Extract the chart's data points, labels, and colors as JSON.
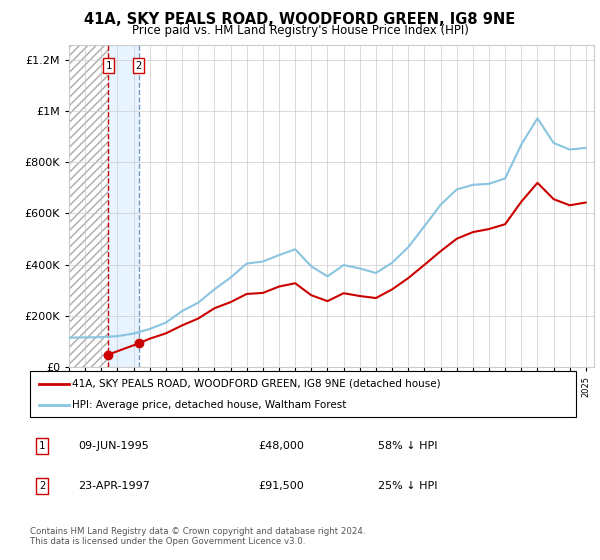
{
  "title": "41A, SKY PEALS ROAD, WOODFORD GREEN, IG8 9NE",
  "subtitle": "Price paid vs. HM Land Registry's House Price Index (HPI)",
  "legend_line1": "41A, SKY PEALS ROAD, WOODFORD GREEN, IG8 9NE (detached house)",
  "legend_line2": "HPI: Average price, detached house, Waltham Forest",
  "footer": "Contains HM Land Registry data © Crown copyright and database right 2024.\nThis data is licensed under the Open Government Licence v3.0.",
  "transactions": [
    {
      "num": 1,
      "date": "09-JUN-1995",
      "price": 48000,
      "year": 1995.44,
      "hpi_pct": "58% ↓ HPI"
    },
    {
      "num": 2,
      "date": "23-APR-1997",
      "price": 91500,
      "year": 1997.31,
      "hpi_pct": "25% ↓ HPI"
    }
  ],
  "hpi_data": {
    "years": [
      1993,
      1994,
      1995,
      1996,
      1997,
      1998,
      1999,
      2000,
      2001,
      2002,
      2003,
      2004,
      2005,
      2006,
      2007,
      2008,
      2009,
      2010,
      2011,
      2012,
      2013,
      2014,
      2015,
      2016,
      2017,
      2018,
      2019,
      2020,
      2021,
      2022,
      2023,
      2024,
      2025
    ],
    "values": [
      114000,
      115000,
      116000,
      120000,
      130000,
      148000,
      173000,
      218000,
      251000,
      303000,
      349000,
      404000,
      412000,
      437000,
      460000,
      393000,
      354000,
      398000,
      385000,
      367000,
      407000,
      468000,
      550000,
      634000,
      694000,
      712000,
      716000,
      737000,
      870000,
      972000,
      876000,
      850000,
      857000
    ]
  },
  "price_line_data": {
    "years": [
      1995.44,
      1997.31,
      1998,
      1999,
      2000,
      2001,
      2002,
      2003,
      2004,
      2005,
      2006,
      2007,
      2008,
      2009,
      2010,
      2011,
      2012,
      2013,
      2014,
      2015,
      2016,
      2017,
      2018,
      2019,
      2020,
      2021,
      2022,
      2023,
      2024,
      2025
    ],
    "values": [
      48000,
      91500,
      110000,
      131000,
      162000,
      189000,
      229000,
      253000,
      285000,
      289000,
      314000,
      327000,
      280000,
      257000,
      288000,
      277000,
      269000,
      303000,
      347000,
      399000,
      452000,
      501000,
      527000,
      539000,
      558000,
      646000,
      720000,
      656000,
      632000,
      643000
    ]
  },
  "hpi_color": "#89c4e1",
  "price_color": "#cc0000",
  "grid_color": "#cccccc",
  "xlim": [
    1993,
    2025.5
  ],
  "ylim": [
    0,
    1260000
  ],
  "yticks": [
    0,
    200000,
    400000,
    600000,
    800000,
    1000000,
    1200000
  ],
  "ytick_labels": [
    "£0",
    "£200K",
    "£400K",
    "£600K",
    "£800K",
    "£1M",
    "£1.2M"
  ]
}
